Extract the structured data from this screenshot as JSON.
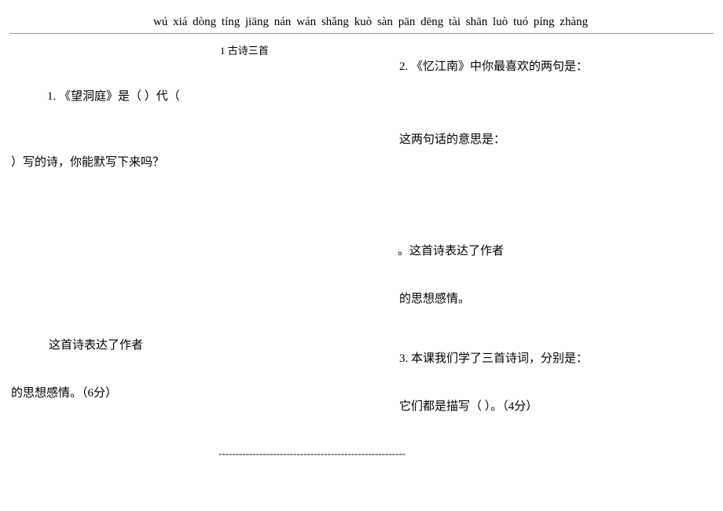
{
  "pinyin": {
    "syllables": [
      "wú",
      "xiá",
      "dòng",
      "tíng",
      "jiāng",
      "nán",
      "wán",
      "shǎng",
      "kuò",
      "sàn",
      "pān",
      "dēng",
      "tài",
      "shān",
      "luò",
      "tuó",
      "píng",
      "zhàng"
    ]
  },
  "section": {
    "number": "1",
    "title": "古诗三首"
  },
  "q1": {
    "line1": "1. 《望洞庭》是（     ）代（",
    "line2": "）写的诗，你能默写下来吗？",
    "sentiment": "这首诗表达了作者",
    "end": "的思想感情。（6分）"
  },
  "q2": {
    "line1": "2. 《忆江南》中你最喜欢的两句是：",
    "meaning": "这两句话的意思是：",
    "expr": "。这首诗表达了作者",
    "end": "的思想感情。"
  },
  "q3": {
    "line1": "3. 本课我们学了三首诗词，分别是：",
    "line2": "它们都是描写（               ）。（4分）"
  },
  "divider": "-------------------------------------------------------"
}
